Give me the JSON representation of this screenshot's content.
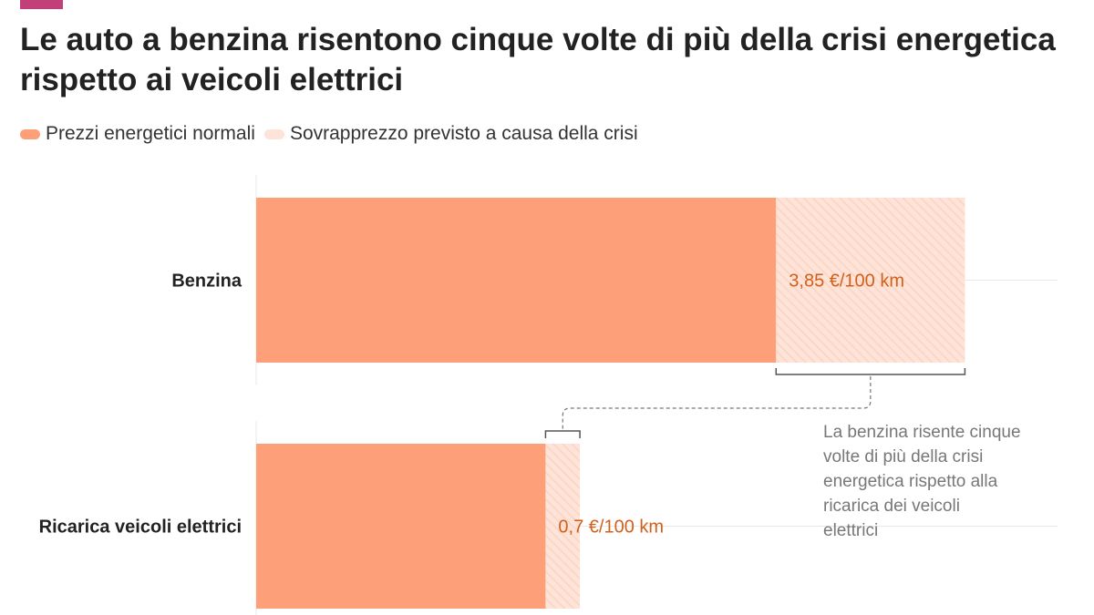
{
  "header": {
    "title": "Le auto a benzina risentono cinque volte di più della crisi energetica rispetto ai veicoli elettrici"
  },
  "colors": {
    "accent_tab": "#c2407a",
    "normal": "#fda07a",
    "surcharge": "#fde3d8",
    "surcharge_hatch": "#fcd3c2",
    "value_label": "#d2601a",
    "annotation": "#777777"
  },
  "legend": {
    "items": [
      {
        "label": "Prezzi energetici normali"
      },
      {
        "label": "Sovrapprezzo previsto a causa della crisi"
      }
    ]
  },
  "chart_data": {
    "type": "bar",
    "orientation": "horizontal",
    "stacked": true,
    "categories": [
      "Benzina",
      "Ricarica veicoli elettrici"
    ],
    "series": [
      {
        "name": "Prezzi energetici normali",
        "values": [
          10.6,
          5.9
        ]
      },
      {
        "name": "Sovrapprezzo previsto a causa della crisi",
        "values": [
          3.85,
          0.7
        ]
      }
    ],
    "data_labels": [
      "3,85 €/100 km",
      "0,7 €/100 km"
    ],
    "annotation": "La benzina risente cinque volte di più della crisi energetica rispetto alla ricarica dei veicoli elettrici",
    "grid": true,
    "legend_position": "top-left"
  }
}
